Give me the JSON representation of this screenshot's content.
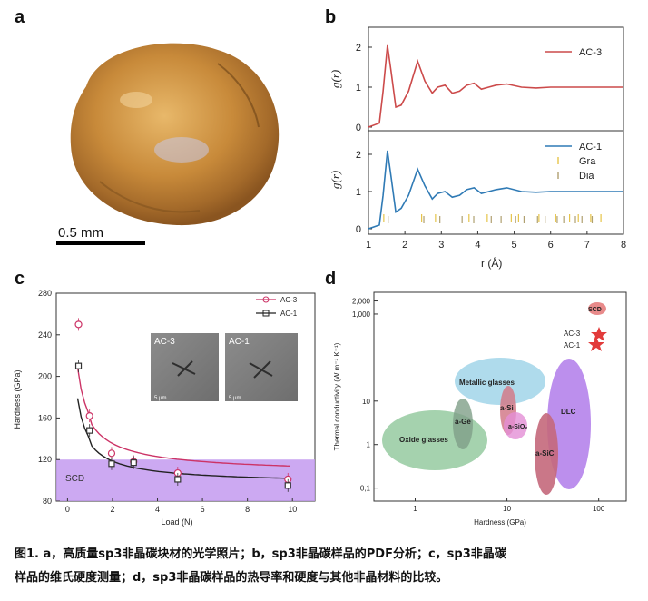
{
  "panels": {
    "a": {
      "letter": "a",
      "scale_label": "0.5 mm"
    },
    "b": {
      "letter": "b",
      "xlabel": "r (Å)",
      "ylabel": "g(r)",
      "xticks": [
        "1",
        "2",
        "3",
        "4",
        "5",
        "6",
        "7",
        "8"
      ],
      "top_yticks": [
        "0",
        "1",
        "2"
      ],
      "bottom_yticks": [
        "0",
        "1",
        "2"
      ],
      "legend_top": [
        "AC-3"
      ],
      "legend_bottom": [
        "AC-1",
        "Gra",
        "Dia"
      ]
    },
    "c": {
      "letter": "c",
      "xlabel": "Load (N)",
      "ylabel": "Hardness (GPa)",
      "band_label": "SCD",
      "legend": [
        "AC-3",
        "AC-1"
      ],
      "inset_labels": [
        "AC-3",
        "AC-1"
      ],
      "inset_scale": [
        "5 μm",
        "5 μm"
      ]
    },
    "d": {
      "letter": "d",
      "xlabel": "Hardness (GPa)",
      "ylabel": "Thermal conductivity (W m⁻¹ K⁻¹)",
      "regions": [
        "Metallic glasses",
        "a-Ge",
        "Oxide glasses",
        "a-Si",
        "a-SiO₂",
        "DLC",
        "a-SiC",
        "SCD"
      ],
      "star_labels": [
        "AC-3",
        "AC-1"
      ]
    }
  },
  "caption": {
    "line1": "图1. a，高质量sp3非晶碳块材的光学照片；b，sp3非晶碳样品的PDF分析；c，sp3非晶碳",
    "line2": "样品的维氏硬度测量；d，sp3非晶碳样品的热导率和硬度与其他非晶材料的比较。"
  },
  "chart_data": [
    {
      "type": "line",
      "panel": "b",
      "xlabel": "r (Å)",
      "ylabel": "g(r)",
      "xlim": [
        1,
        8
      ],
      "ylim": [
        0,
        2
      ],
      "series": [
        {
          "name": "AC-3",
          "color": "#cc4a4a",
          "x": [
            1.0,
            1.3,
            1.4,
            1.52,
            1.62,
            1.75,
            1.9,
            2.1,
            2.35,
            2.55,
            2.75,
            2.9,
            3.1,
            3.3,
            3.5,
            3.7,
            3.9,
            4.1,
            4.3,
            4.5,
            4.8,
            5.2,
            5.6,
            6.0,
            6.5,
            7.0,
            7.5,
            8.0
          ],
          "values": [
            0.0,
            0.1,
            0.9,
            2.05,
            1.4,
            0.5,
            0.55,
            0.9,
            1.65,
            1.15,
            0.85,
            1.0,
            1.05,
            0.85,
            0.9,
            1.05,
            1.1,
            0.95,
            1.0,
            1.05,
            1.08,
            1.0,
            0.98,
            1.0,
            1.0,
            1.0,
            1.0,
            1.0
          ]
        },
        {
          "name": "AC-1",
          "color": "#2f7ab5",
          "x": [
            1.0,
            1.3,
            1.4,
            1.52,
            1.62,
            1.75,
            1.9,
            2.1,
            2.35,
            2.55,
            2.75,
            2.9,
            3.1,
            3.3,
            3.5,
            3.7,
            3.9,
            4.1,
            4.3,
            4.5,
            4.8,
            5.2,
            5.6,
            6.0,
            6.5,
            7.0,
            7.5,
            8.0
          ],
          "values": [
            0.0,
            0.1,
            0.9,
            2.1,
            1.4,
            0.45,
            0.55,
            0.9,
            1.6,
            1.15,
            0.8,
            0.95,
            1.0,
            0.85,
            0.9,
            1.05,
            1.1,
            0.95,
            1.0,
            1.05,
            1.1,
            1.0,
            0.98,
            1.0,
            1.0,
            1.0,
            1.0,
            1.0
          ]
        }
      ]
    },
    {
      "type": "line",
      "panel": "c",
      "xlabel": "Load (N)",
      "ylabel": "Hardness (GPa)",
      "xlim": [
        -0.5,
        11
      ],
      "ylim": [
        80,
        280
      ],
      "series": [
        {
          "name": "AC-3",
          "color": "#cc3366",
          "x": [
            0.49,
            0.98,
            1.96,
            2.94,
            4.9,
            9.8
          ],
          "values": [
            250,
            162,
            126,
            118,
            107,
            101
          ]
        },
        {
          "name": "AC-1",
          "color": "#333333",
          "x": [
            0.49,
            0.98,
            1.96,
            2.94,
            4.9,
            9.8
          ],
          "values": [
            210,
            148,
            116,
            117,
            101,
            95
          ]
        }
      ],
      "band": {
        "label": "SCD",
        "range": [
          80,
          120
        ]
      }
    }
  ]
}
